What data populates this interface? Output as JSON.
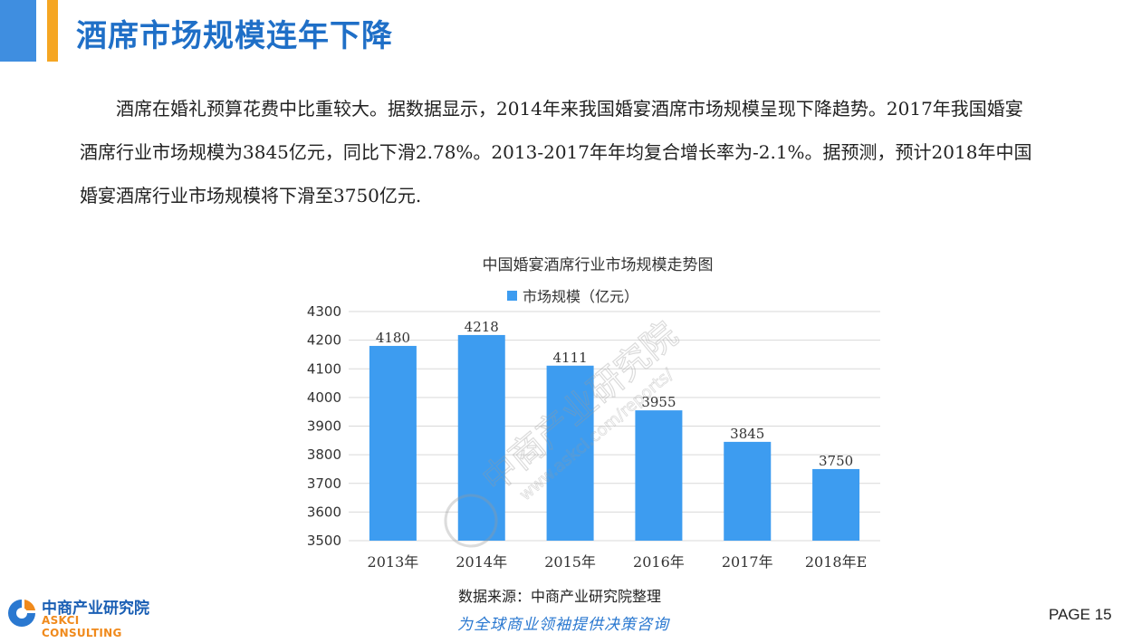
{
  "page": {
    "title": "酒席市场规模连年下降",
    "intro": "酒席在婚礼预算花费中比重较大。据数据显示，2014年来我国婚宴酒席市场规模呈现下降趋势。2017年我国婚宴酒席行业市场规模为3845亿元，同比下滑2.78%。2013-2017年年均复合增长率为-2.1%。据预测，预计2018年中国婚宴酒席行业市场规模将下滑至3750亿元.",
    "source": "数据来源：中商产业研究院整理",
    "slogan": "为全球商业领袖提供决策咨询",
    "page_number": "PAGE  15",
    "logo": {
      "name_cn": "中商产业研究院",
      "name_en": "ASKCI CONSULTING"
    },
    "watermark": {
      "name_cn": "中商产业研究院",
      "url": "www.askci.com/reports/"
    },
    "colors": {
      "accent_blue": "#3f8ee0",
      "accent_orange": "#f5a623",
      "bar": "#3d9cf0",
      "title": "#1f6fc7"
    }
  },
  "chart_data": {
    "type": "bar",
    "title": "中国婚宴酒席行业市场规模走势图",
    "categories": [
      "2013年",
      "2014年",
      "2015年",
      "2016年",
      "2017年",
      "2018年E"
    ],
    "series": [
      {
        "name": "市场规模（亿元）",
        "values": [
          4180,
          4218,
          4111,
          3955,
          3845,
          3750
        ]
      }
    ],
    "ylim": [
      3500,
      4300
    ],
    "yticks": [
      3500,
      3600,
      3700,
      3800,
      3900,
      4000,
      4100,
      4200,
      4300
    ],
    "grid": true,
    "legend": "top-center",
    "data_labels": true
  }
}
